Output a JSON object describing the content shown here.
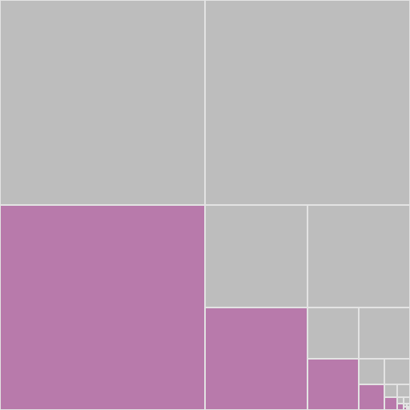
{
  "figure": {
    "type": "recursive-square-subdivision",
    "description_free": true,
    "levels": 9,
    "colors": {
      "background": "#e3e3e3",
      "gray": "#bdbdbd",
      "magenta": "#b87aab",
      "stroke": "#e3e3e3"
    },
    "pattern_per_level": [
      "gray",
      "gray",
      "magenta",
      "recurse"
    ]
  }
}
